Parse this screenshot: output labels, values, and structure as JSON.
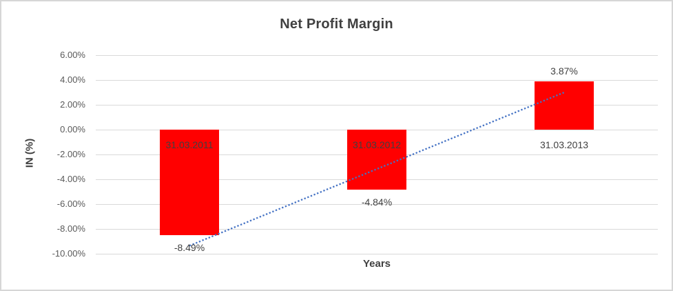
{
  "chart_data": {
    "type": "bar",
    "title": "Net Profit Margin",
    "xlabel": "Years",
    "ylabel": "IN (%)",
    "categories": [
      "31.03.2011",
      "31.03.2012",
      "31.03.2013"
    ],
    "values": [
      -8.49,
      -4.84,
      3.87
    ],
    "data_labels": [
      "-8.49%",
      "-4.84%",
      "3.87%"
    ],
    "ylim": [
      -10,
      6
    ],
    "y_ticks": [
      {
        "label": "6.00%",
        "value": 6
      },
      {
        "label": "4.00%",
        "value": 4
      },
      {
        "label": "2.00%",
        "value": 2
      },
      {
        "label": "0.00%",
        "value": 0
      },
      {
        "label": "-2.00%",
        "value": -2
      },
      {
        "label": "-4.00%",
        "value": -4
      },
      {
        "label": "-6.00%",
        "value": -6
      },
      {
        "label": "-8.00%",
        "value": -8
      },
      {
        "label": "-10.00%",
        "value": -10
      }
    ],
    "grid": true,
    "legend": false,
    "bar_color": "#FF0000",
    "gridline_color": "#D9D9D9",
    "title_color": "#404040",
    "tick_color": "#595959",
    "trendline": {
      "type": "linear",
      "style": "dotted",
      "color": "#4472C4",
      "start_value": -9.35,
      "end_value": 3.0
    }
  }
}
